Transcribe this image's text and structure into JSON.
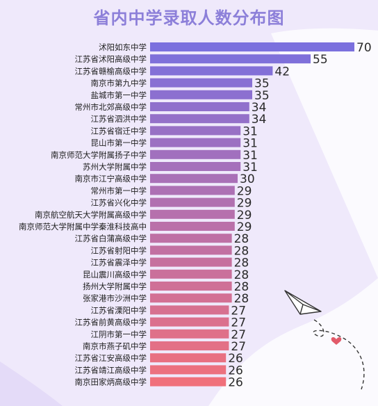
{
  "colors": {
    "background": "#efe9fb",
    "title": "#8c7fd9",
    "bar_top": "#7b70de",
    "bar_bottom": "#f0707b"
  },
  "decorations": [
    "paper-plane-icon",
    "heart-icon",
    "dashed-flight-path"
  ],
  "chart_data": {
    "type": "bar",
    "orientation": "horizontal",
    "title": "省内中学录取人数分布图",
    "xlabel": "",
    "ylabel": "",
    "grid": false,
    "categories": [
      "沭阳如东中学",
      "江苏省沭阳高级中学",
      "江苏省赣榆高级中学",
      "南京市第九中学",
      "盐城市第一中学",
      "常州市北郊高级中学",
      "江苏省泗洪中学",
      "江苏省宿迁中学",
      "昆山市第一中学",
      "南京师范大学附属扬子中学",
      "苏州大学附属中学",
      "南京市江宁高级中学",
      "常州市第一中学",
      "江苏省兴化中学",
      "南京航空航天大学附属高级中学",
      "南京师范大学附属中学秦淮科技高中",
      "江苏省白蒲高级中学",
      "江苏省射阳中学",
      "江苏省震泽中学",
      "昆山震川高级中学",
      "扬州大学附属中学",
      "张家港市沙洲中学",
      "江苏省溧阳中学",
      "江苏省前黄高级中学",
      "江阴市第一中学",
      "南京市燕子矶中学",
      "江苏省江安高级中学",
      "江苏省靖江高级中学",
      "南京田家炳高级中学"
    ],
    "values": [
      70,
      55,
      42,
      35,
      35,
      34,
      34,
      31,
      31,
      31,
      31,
      30,
      29,
      29,
      29,
      29,
      28,
      28,
      28,
      28,
      28,
      28,
      27,
      27,
      27,
      27,
      26,
      26,
      26
    ],
    "xlim": [
      0,
      70
    ]
  }
}
